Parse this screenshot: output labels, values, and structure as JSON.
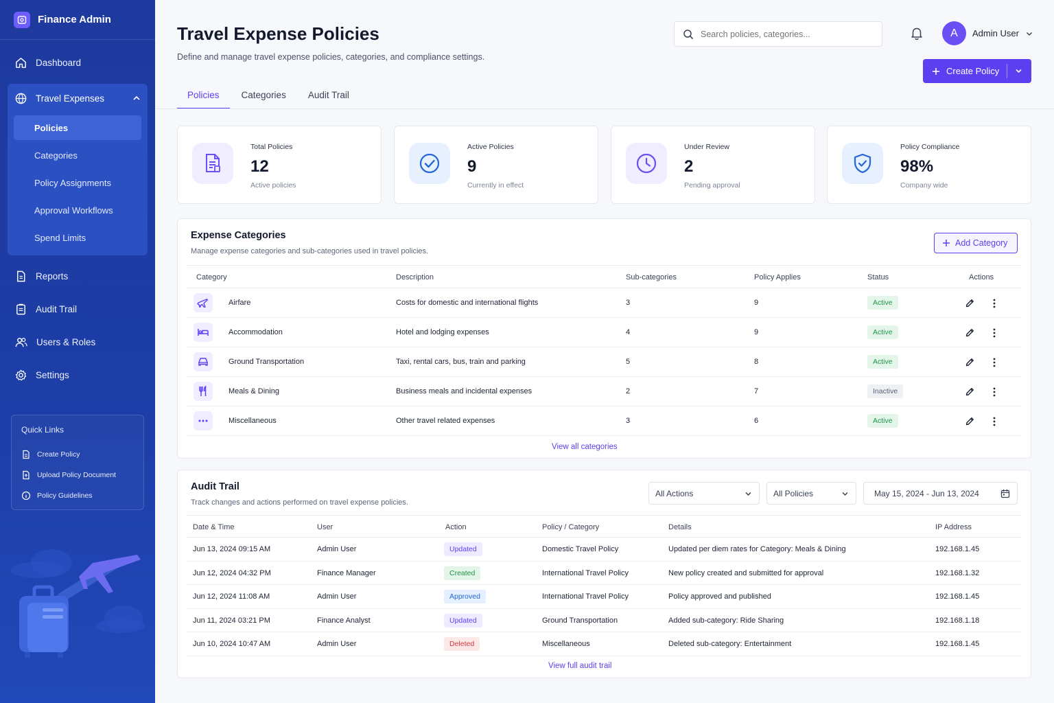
{
  "app": {
    "name": "Finance Admin"
  },
  "sidebar": {
    "dashboard": "Dashboard",
    "group": {
      "label": "Travel Expenses",
      "items": [
        "Policies",
        "Categories",
        "Policy Assignments",
        "Approval Workflows",
        "Spend Limits"
      ]
    },
    "items": [
      "Reports",
      "Audit Trail",
      "Users & Roles",
      "Settings"
    ],
    "quick_links": {
      "title": "Quick Links",
      "items": [
        "Create Policy",
        "Upload Policy Document",
        "Policy Guidelines"
      ]
    }
  },
  "header": {
    "title": "Travel Expense Policies",
    "subtitle": "Define and manage travel expense policies, categories, and compliance settings.",
    "search_placeholder": "Search policies, categories...",
    "user_initial": "A",
    "user_name": "Admin User",
    "create_button": "Create Policy"
  },
  "tabs": [
    "Policies",
    "Categories",
    "Audit Trail"
  ],
  "stats": [
    {
      "label": "Total Policies",
      "value": "12",
      "sub": "Active policies",
      "icon": "document-icon",
      "color": "#6a4ff5",
      "bg": "#efedff"
    },
    {
      "label": "Active Policies",
      "value": "9",
      "sub": "Currently in effect",
      "icon": "check-circle-icon",
      "color": "#2466d8",
      "bg": "#e6f0ff"
    },
    {
      "label": "Under Review",
      "value": "2",
      "sub": "Pending approval",
      "icon": "clock-icon",
      "color": "#6a4ff5",
      "bg": "#efedff"
    },
    {
      "label": "Policy Compliance",
      "value": "98%",
      "sub": "Company wide",
      "icon": "shield-check-icon",
      "color": "#2466d8",
      "bg": "#e6f0ff"
    }
  ],
  "categories": {
    "title": "Expense Categories",
    "subtitle": "Manage expense categories and sub-categories used in travel policies.",
    "add_button": "Add Category",
    "columns": [
      "Category",
      "Description",
      "Sub-categories",
      "Policy Applies",
      "Status",
      "Actions"
    ],
    "rows": [
      {
        "name": "Airfare",
        "description": "Costs for domestic and international flights",
        "sub": "3",
        "applies": "9",
        "status": "Active",
        "icon": "airplane-icon"
      },
      {
        "name": "Accommodation",
        "description": "Hotel and lodging expenses",
        "sub": "4",
        "applies": "9",
        "status": "Active",
        "icon": "bed-icon"
      },
      {
        "name": "Ground Transportation",
        "description": "Taxi, rental cars, bus, train and parking",
        "sub": "5",
        "applies": "8",
        "status": "Active",
        "icon": "car-icon"
      },
      {
        "name": "Meals & Dining",
        "description": "Business meals and incidental expenses",
        "sub": "2",
        "applies": "7",
        "status": "Inactive",
        "icon": "utensils-icon"
      },
      {
        "name": "Miscellaneous",
        "description": "Other travel related expenses",
        "sub": "3",
        "applies": "6",
        "status": "Active",
        "icon": "dots-icon"
      }
    ],
    "view_all": "View all categories"
  },
  "audit": {
    "title": "Audit Trail",
    "subtitle": "Track changes and actions performed on travel expense policies.",
    "filter_actions": "All Actions",
    "filter_policies": "All Policies",
    "date_range": "May 15, 2024 - Jun 13, 2024",
    "columns": [
      "Date & Time",
      "User",
      "Action",
      "Policy / Category",
      "Details",
      "IP Address"
    ],
    "rows": [
      {
        "time": "Jun 13, 2024 09:15 AM",
        "user": "Admin User",
        "action": "Updated",
        "policy": "Domestic Travel Policy",
        "details": "Updated per diem rates for Category: Meals & Dining",
        "ip": "192.168.1.45"
      },
      {
        "time": "Jun 12, 2024 04:32 PM",
        "user": "Finance Manager",
        "action": "Created",
        "policy": "International Travel Policy",
        "details": "New policy created and submitted for approval",
        "ip": "192.168.1.32"
      },
      {
        "time": "Jun 12, 2024 11:08 AM",
        "user": "Admin User",
        "action": "Approved",
        "policy": "International Travel Policy",
        "details": "Policy approved and published",
        "ip": "192.168.1.45"
      },
      {
        "time": "Jun 11, 2024 03:21 PM",
        "user": "Finance Analyst",
        "action": "Updated",
        "policy": "Ground Transportation",
        "details": "Added sub-category: Ride Sharing",
        "ip": "192.168.1.18"
      },
      {
        "time": "Jun 10, 2024 10:47 AM",
        "user": "Admin User",
        "action": "Deleted",
        "policy": "Miscellaneous",
        "details": "Deleted sub-category: Entertainment",
        "ip": "192.168.1.45"
      }
    ],
    "view_all": "View full audit trail"
  },
  "colors": {
    "accent": "#5b3ff0",
    "sidebar": "#1e3a9e"
  }
}
